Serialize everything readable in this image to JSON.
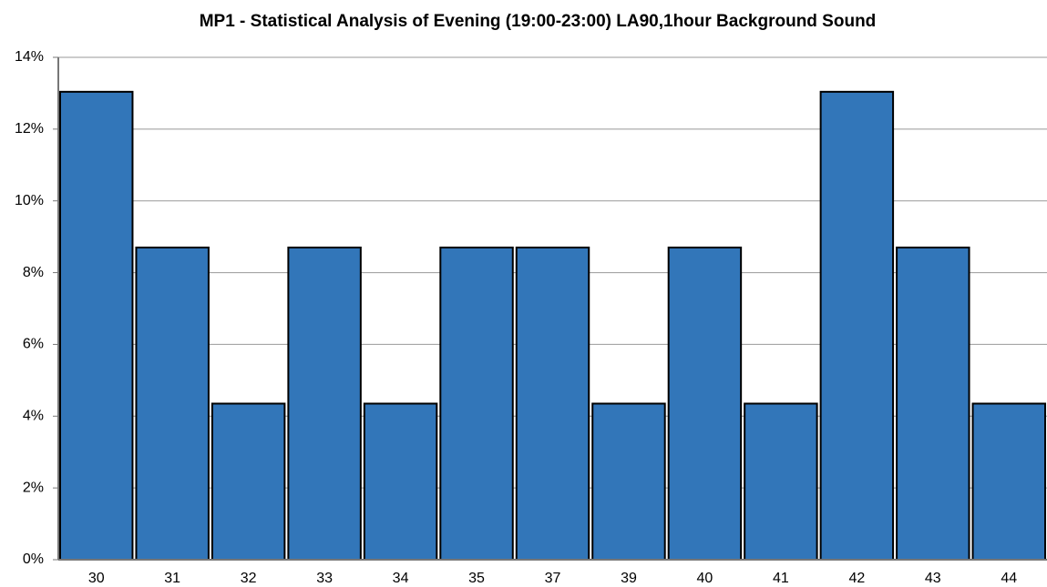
{
  "chart_data": {
    "type": "bar",
    "title": "MP1 - Statistical Analysis of Evening (19:00-23:00) LA90,1hour Background Sound",
    "categories": [
      "30",
      "31",
      "32",
      "33",
      "34",
      "35",
      "37",
      "39",
      "40",
      "41",
      "42",
      "43",
      "44"
    ],
    "values": [
      13.04,
      8.7,
      4.35,
      8.7,
      4.35,
      8.7,
      8.7,
      4.35,
      8.7,
      4.35,
      13.04,
      8.7,
      4.35
    ],
    "color": "#3276b9",
    "ylim": [
      0,
      14
    ],
    "yticks": [
      {
        "value": 0,
        "label": "0%"
      },
      {
        "value": 2,
        "label": "2%"
      },
      {
        "value": 4,
        "label": "4%"
      },
      {
        "value": 6,
        "label": "6%"
      },
      {
        "value": 8,
        "label": "8%"
      },
      {
        "value": 10,
        "label": "10%"
      },
      {
        "value": 12,
        "label": "12%"
      },
      {
        "value": 14,
        "label": "14%"
      }
    ],
    "grid": true
  }
}
